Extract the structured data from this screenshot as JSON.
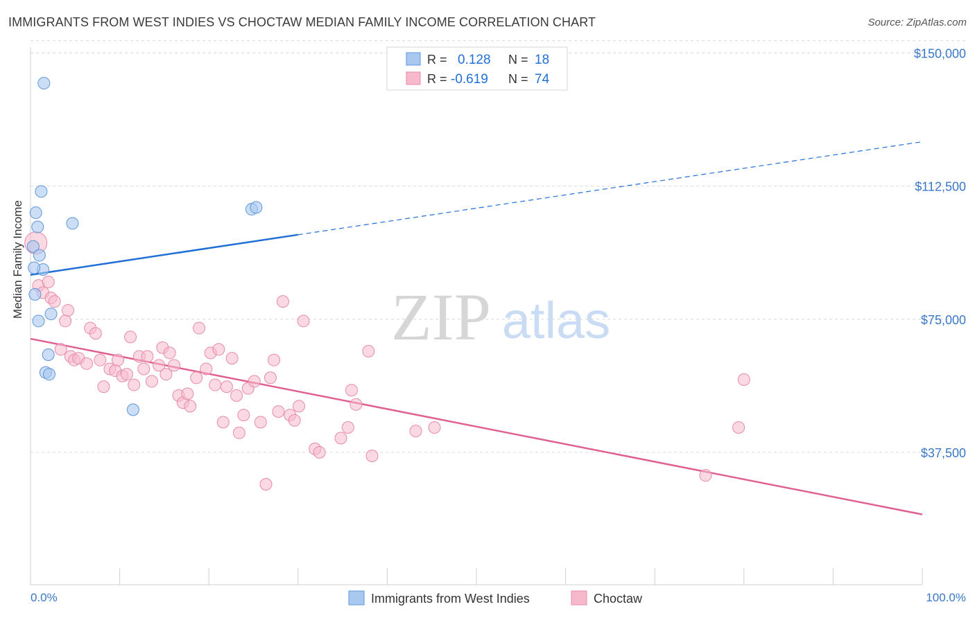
{
  "header": {
    "title": "IMMIGRANTS FROM WEST INDIES VS CHOCTAW MEDIAN FAMILY INCOME CORRELATION CHART",
    "source": "Source: ZipAtlas.com"
  },
  "watermark": {
    "zip": "ZIP",
    "atlas": "atlas"
  },
  "colors": {
    "blue": "#1f6fd6",
    "blue_fill": "#a8c8f0",
    "pink": "#e06092",
    "pink_fill": "#f6b9cc",
    "tick_label": "#3a78c9",
    "grid": "#d9d9d9"
  },
  "legend": {
    "rows": [
      {
        "r_label": "R =",
        "r_value": "0.128",
        "n_label": "N =",
        "n_value": "18"
      },
      {
        "r_label": "R =",
        "r_value": "-0.619",
        "n_label": "N =",
        "n_value": "74"
      }
    ]
  },
  "chart_data": {
    "type": "scatter",
    "title": "IMMIGRANTS FROM WEST INDIES VS CHOCTAW MEDIAN FAMILY INCOME CORRELATION CHART",
    "xlabel": "",
    "ylabel": "Median Family Income",
    "xlim": [
      0,
      100
    ],
    "ylim": [
      0,
      153500
    ],
    "x_tick_labels": [
      "0.0%",
      "100.0%"
    ],
    "y_ticks": [
      {
        "value": 37500,
        "label": "$37,500"
      },
      {
        "value": 75000,
        "label": "$75,000"
      },
      {
        "value": 112500,
        "label": "$112,500"
      },
      {
        "value": 150000,
        "label": "$150,000"
      }
    ],
    "grid": "horizontal dashed",
    "legend_position": "top-center",
    "series": [
      {
        "name": "Immigrants from West Indies",
        "color": "#a8c8f0",
        "r": 0.128,
        "n": 18,
        "trend": {
          "x": [
            0,
            30,
            100
          ],
          "y": [
            87500,
            98800,
            125000
          ],
          "solid_until": 30
        },
        "points": [
          {
            "x": 1.5,
            "y": 141500
          },
          {
            "x": 1.2,
            "y": 111000
          },
          {
            "x": 0.6,
            "y": 105000
          },
          {
            "x": 0.8,
            "y": 101000
          },
          {
            "x": 4.7,
            "y": 102000
          },
          {
            "x": 0.3,
            "y": 95500
          },
          {
            "x": 1.0,
            "y": 93000
          },
          {
            "x": 1.4,
            "y": 89000
          },
          {
            "x": 0.4,
            "y": 89500
          },
          {
            "x": 0.5,
            "y": 82000
          },
          {
            "x": 2.3,
            "y": 76500
          },
          {
            "x": 0.9,
            "y": 74500
          },
          {
            "x": 2.0,
            "y": 65000
          },
          {
            "x": 1.7,
            "y": 60000
          },
          {
            "x": 2.1,
            "y": 59500
          },
          {
            "x": 11.5,
            "y": 49500
          },
          {
            "x": 24.8,
            "y": 106000
          },
          {
            "x": 25.3,
            "y": 106500
          }
        ]
      },
      {
        "name": "Choctaw",
        "color": "#f6b9cc",
        "r": -0.619,
        "n": 74,
        "trend": {
          "x": [
            0,
            100
          ],
          "y": [
            69500,
            20000
          ]
        },
        "points": [
          {
            "x": 0.6,
            "y": 96500
          },
          {
            "x": 0.9,
            "y": 84500
          },
          {
            "x": 1.4,
            "y": 82500
          },
          {
            "x": 2.0,
            "y": 85500
          },
          {
            "x": 2.3,
            "y": 81000
          },
          {
            "x": 2.7,
            "y": 80000
          },
          {
            "x": 4.2,
            "y": 77500
          },
          {
            "x": 3.9,
            "y": 74500
          },
          {
            "x": 3.4,
            "y": 66500
          },
          {
            "x": 4.5,
            "y": 64500
          },
          {
            "x": 4.9,
            "y": 63500
          },
          {
            "x": 5.4,
            "y": 64000
          },
          {
            "x": 6.3,
            "y": 62500
          },
          {
            "x": 6.7,
            "y": 72500
          },
          {
            "x": 7.3,
            "y": 71000
          },
          {
            "x": 7.8,
            "y": 63500
          },
          {
            "x": 8.2,
            "y": 56000
          },
          {
            "x": 8.9,
            "y": 61000
          },
          {
            "x": 9.5,
            "y": 60500
          },
          {
            "x": 9.8,
            "y": 63500
          },
          {
            "x": 10.3,
            "y": 59000
          },
          {
            "x": 10.8,
            "y": 59500
          },
          {
            "x": 11.2,
            "y": 70000
          },
          {
            "x": 11.6,
            "y": 56500
          },
          {
            "x": 12.2,
            "y": 64500
          },
          {
            "x": 12.7,
            "y": 61000
          },
          {
            "x": 13.1,
            "y": 64500
          },
          {
            "x": 13.6,
            "y": 57500
          },
          {
            "x": 14.4,
            "y": 62000
          },
          {
            "x": 14.8,
            "y": 67000
          },
          {
            "x": 15.2,
            "y": 59500
          },
          {
            "x": 15.6,
            "y": 65500
          },
          {
            "x": 16.1,
            "y": 62000
          },
          {
            "x": 16.6,
            "y": 53500
          },
          {
            "x": 17.1,
            "y": 51500
          },
          {
            "x": 17.6,
            "y": 54000
          },
          {
            "x": 17.9,
            "y": 50500
          },
          {
            "x": 18.6,
            "y": 58500
          },
          {
            "x": 18.9,
            "y": 72500
          },
          {
            "x": 19.7,
            "y": 61000
          },
          {
            "x": 20.2,
            "y": 65500
          },
          {
            "x": 20.7,
            "y": 56500
          },
          {
            "x": 21.1,
            "y": 66500
          },
          {
            "x": 21.6,
            "y": 46000
          },
          {
            "x": 22.0,
            "y": 56000
          },
          {
            "x": 22.6,
            "y": 64000
          },
          {
            "x": 23.1,
            "y": 53500
          },
          {
            "x": 23.4,
            "y": 43000
          },
          {
            "x": 23.9,
            "y": 48000
          },
          {
            "x": 24.4,
            "y": 55500
          },
          {
            "x": 25.1,
            "y": 57500
          },
          {
            "x": 25.8,
            "y": 46000
          },
          {
            "x": 26.4,
            "y": 28500
          },
          {
            "x": 26.9,
            "y": 58500
          },
          {
            "x": 27.3,
            "y": 63500
          },
          {
            "x": 27.8,
            "y": 49000
          },
          {
            "x": 28.3,
            "y": 80000
          },
          {
            "x": 29.1,
            "y": 48000
          },
          {
            "x": 29.6,
            "y": 46500
          },
          {
            "x": 30.1,
            "y": 50500
          },
          {
            "x": 30.6,
            "y": 74500
          },
          {
            "x": 31.9,
            "y": 38500
          },
          {
            "x": 32.4,
            "y": 37500
          },
          {
            "x": 34.8,
            "y": 41500
          },
          {
            "x": 35.6,
            "y": 44500
          },
          {
            "x": 36.0,
            "y": 55000
          },
          {
            "x": 36.5,
            "y": 51000
          },
          {
            "x": 37.9,
            "y": 66000
          },
          {
            "x": 38.3,
            "y": 36500
          },
          {
            "x": 43.2,
            "y": 43500
          },
          {
            "x": 45.3,
            "y": 44500
          },
          {
            "x": 75.7,
            "y": 31000
          },
          {
            "x": 79.4,
            "y": 44500
          },
          {
            "x": 80.0,
            "y": 58000
          }
        ]
      }
    ]
  }
}
